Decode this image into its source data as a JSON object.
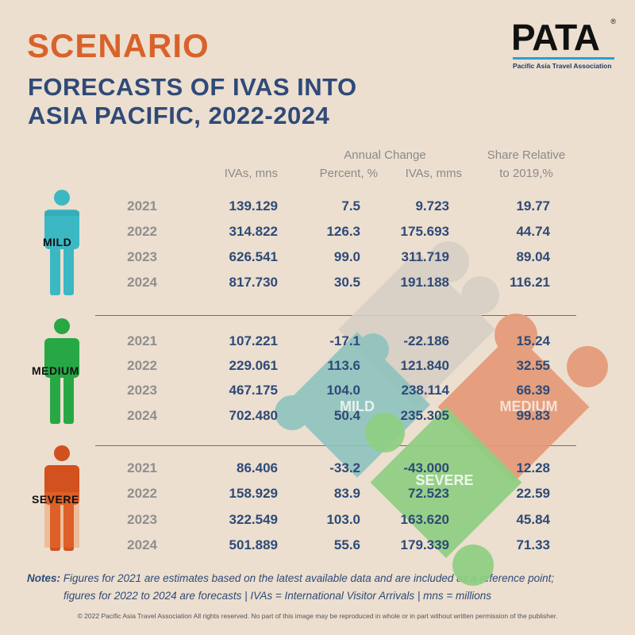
{
  "heading": {
    "scenario": "SCENARIO",
    "title_line1": "FORECASTS  OF IVAS INTO",
    "title_line2": "ASIA PACIFIC, 2022-2024"
  },
  "logo": {
    "word": "PATA",
    "reg": "®",
    "subtitle": "Pacific Asia Travel Association"
  },
  "columns": {
    "ivas": "IVAs, mns",
    "annual_change": "Annual Change",
    "percent": "Percent, %",
    "ivas_change": "IVAs, mms",
    "share_line1": "Share Relative",
    "share_line2": "to 2019,%"
  },
  "scenarios": [
    {
      "name": "MILD",
      "color": "#3bb8c4",
      "rows": [
        {
          "year": "2021",
          "ivas": "139.129",
          "percent": "7.5",
          "change": "9.723",
          "share": "19.77"
        },
        {
          "year": "2022",
          "ivas": "314.822",
          "percent": "126.3",
          "change": "175.693",
          "share": "44.74"
        },
        {
          "year": "2023",
          "ivas": "626.541",
          "percent": "99.0",
          "change": "311.719",
          "share": "89.04"
        },
        {
          "year": "2024",
          "ivas": "817.730",
          "percent": "30.5",
          "change": "191.188",
          "share": "116.21"
        }
      ]
    },
    {
      "name": "MEDIUM",
      "color": "#27a845",
      "rows": [
        {
          "year": "2021",
          "ivas": "107.221",
          "percent": "-17.1",
          "change": "-22.186",
          "share": "15.24"
        },
        {
          "year": "2022",
          "ivas": "229.061",
          "percent": "113.6",
          "change": "121.840",
          "share": "32.55"
        },
        {
          "year": "2023",
          "ivas": "467.175",
          "percent": "104.0",
          "change": "238.114",
          "share": "66.39"
        },
        {
          "year": "2024",
          "ivas": "702.480",
          "percent": "50.4",
          "change": "235.305",
          "share": "99.83"
        }
      ]
    },
    {
      "name": "SEVERE",
      "color": "#d3501f",
      "rows": [
        {
          "year": "2021",
          "ivas": "86.406",
          "percent": "-33.2",
          "change": "-43.000",
          "share": "12.28"
        },
        {
          "year": "2022",
          "ivas": "158.929",
          "percent": "83.9",
          "change": "72.523",
          "share": "22.59"
        },
        {
          "year": "2023",
          "ivas": "322.549",
          "percent": "103.0",
          "change": "163.620",
          "share": "45.84"
        },
        {
          "year": "2024",
          "ivas": "501.889",
          "percent": "55.6",
          "change": "179.339",
          "share": "71.33"
        }
      ]
    }
  ],
  "puzzle": {
    "mild": "MILD",
    "medium": "MEDIUM",
    "severe": "SEVERE",
    "colors": {
      "top": "#d8cfc6",
      "mild": "#8ec3bf",
      "medium": "#e59a78",
      "severe": "#8fcf82"
    }
  },
  "notes": {
    "label": "Notes:",
    "line1": "Figures for 2021 are estimates based on the latest available data and are included as a reference point;",
    "line2": "figures for 2022 to 2024 are forecasts | IVAs = International Visitor Arrivals | mns = millions"
  },
  "copyright": "© 2022 Pacific Asia Travel Association All rights reserved. No part of this image may be reproduced in whole or in part without written permission of the publisher."
}
